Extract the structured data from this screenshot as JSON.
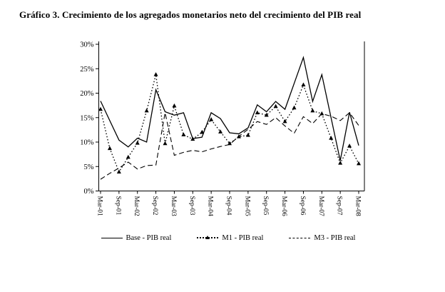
{
  "title": "Gráfico 3. Crecimiento de los agregados monetarios neto del crecimiento del PIB real",
  "chart_data": {
    "type": "line",
    "title": "Gráfico 3. Crecimiento de los agregados monetarios neto del crecimiento del PIB real",
    "xlabel": "",
    "ylabel": "",
    "ylim": [
      0,
      30
    ],
    "grid": "off",
    "legend_position": "bottom",
    "y_tick_labels": [
      "0%",
      "5%",
      "10%",
      "15%",
      "20%",
      "25%",
      "30%"
    ],
    "x_tick_labels": [
      "Mar-01",
      "Sep-01",
      "Mar-02",
      "Sep-02",
      "Mar-03",
      "Sep-03",
      "Mar-04",
      "Sep-04",
      "Mar-05",
      "Sep-05",
      "Mar-06",
      "Sep-06",
      "Mar-07",
      "Sep-07",
      "Mar-08"
    ],
    "x": [
      "Mar-01",
      "Jun-01",
      "Sep-01",
      "Dec-01",
      "Mar-02",
      "Jun-02",
      "Sep-02",
      "Dec-02",
      "Mar-03",
      "Jun-03",
      "Sep-03",
      "Dec-03",
      "Mar-04",
      "Jun-04",
      "Sep-04",
      "Dec-04",
      "Mar-05",
      "Jun-05",
      "Sep-05",
      "Dec-05",
      "Mar-06",
      "Jun-06",
      "Sep-06",
      "Dec-06",
      "Mar-07",
      "Jun-07",
      "Sep-07",
      "Dec-07",
      "Mar-08"
    ],
    "series": [
      {
        "name": "Base - PIB real",
        "style": "solid",
        "marker": "none",
        "values": [
          18.4,
          14.4,
          10.4,
          9.0,
          10.8,
          10.0,
          20.7,
          16.2,
          15.5,
          16.0,
          10.7,
          11.0,
          16.0,
          14.8,
          11.9,
          11.7,
          12.9,
          17.6,
          16.2,
          18.3,
          16.7,
          22.0,
          27.3,
          18.3,
          23.8,
          15.0,
          6.2,
          16.1,
          9.3
        ]
      },
      {
        "name": "M1 - PIB real",
        "style": "dotted",
        "marker": "triangle",
        "values": [
          16.7,
          8.7,
          3.9,
          6.9,
          9.8,
          16.4,
          23.8,
          9.7,
          17.4,
          11.5,
          10.6,
          12.0,
          14.6,
          12.1,
          9.7,
          11.1,
          11.4,
          16.0,
          15.5,
          17.3,
          14.2,
          17.0,
          21.7,
          16.4,
          15.8,
          10.8,
          5.7,
          9.2,
          5.6
        ]
      },
      {
        "name": "M3 - PIB real",
        "style": "dashed",
        "marker": "none",
        "values": [
          2.4,
          3.6,
          4.7,
          5.9,
          4.5,
          5.2,
          5.3,
          16.0,
          7.3,
          7.9,
          8.3,
          8.0,
          8.6,
          9.1,
          9.5,
          11.2,
          12.6,
          14.2,
          13.6,
          15.0,
          13.3,
          11.8,
          15.2,
          13.8,
          15.8,
          15.3,
          14.4,
          16.0,
          13.4
        ]
      }
    ],
    "line_color": "#000000"
  }
}
